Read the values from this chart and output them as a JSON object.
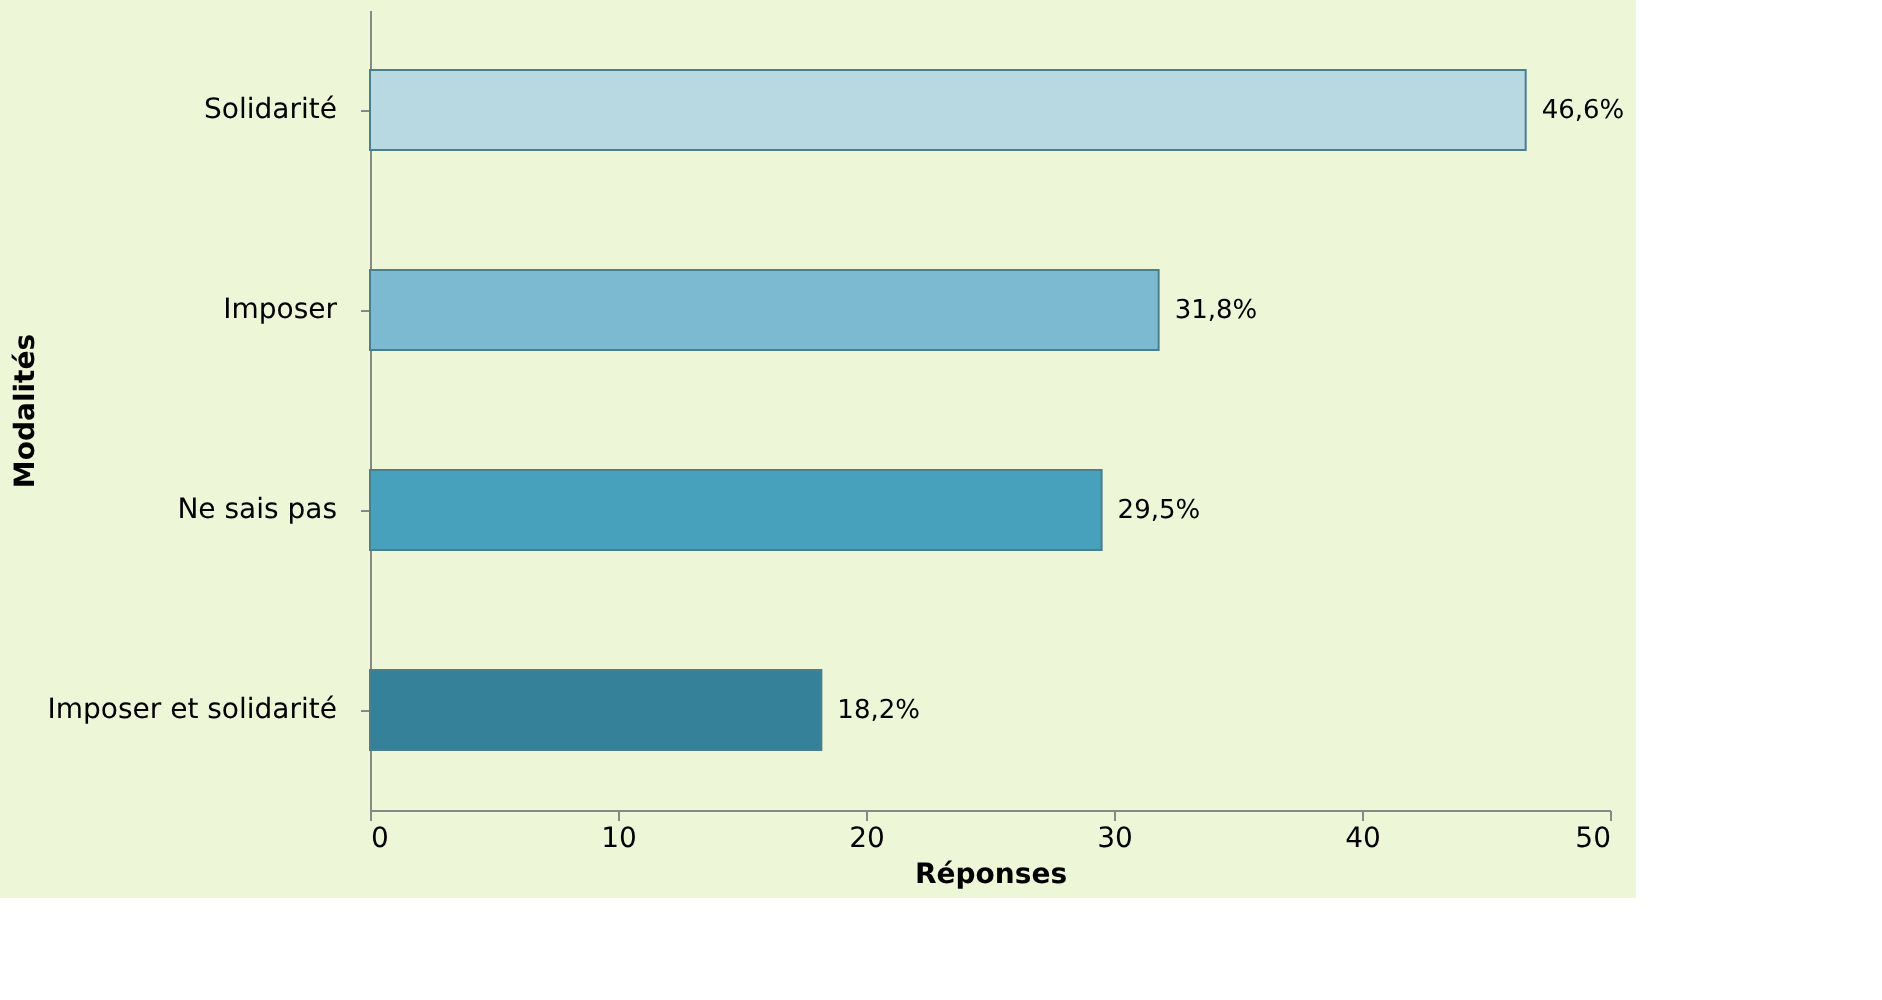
{
  "chart_data": {
    "type": "bar",
    "orientation": "horizontal",
    "xlabel": "Réponses",
    "ylabel": "Modalités",
    "categories": [
      "Solidarité",
      "Imposer",
      "Ne sais pas",
      "Imposer et solidarité"
    ],
    "values": [
      46.6,
      31.8,
      29.5,
      18.2
    ],
    "colors": [
      "#b8d8e2",
      "#7bbad0",
      "#47a1bc",
      "#36819a"
    ],
    "value_labels": [
      "46,6%",
      "31,8%",
      "29,5%",
      "18,2%"
    ],
    "xlim": [
      0,
      50
    ],
    "xticks": [
      0,
      10,
      20,
      30,
      40,
      50
    ],
    "grid": false
  }
}
